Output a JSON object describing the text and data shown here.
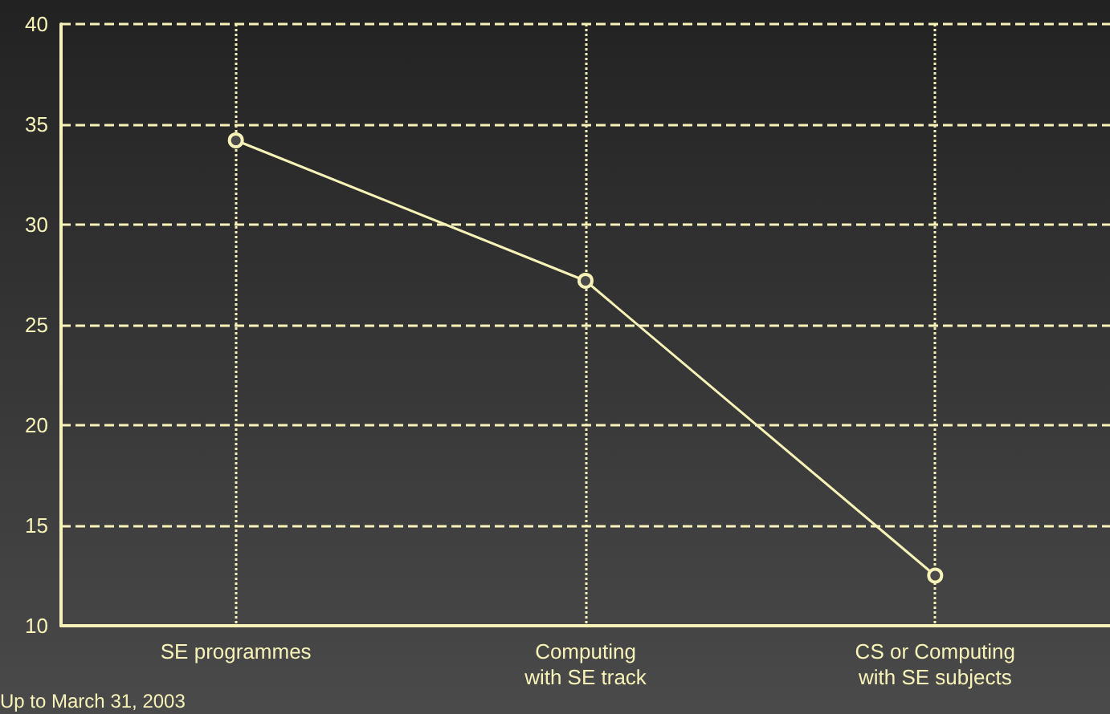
{
  "chart_data": {
    "type": "line",
    "categories": [
      "SE programmes",
      "Computing\nwith SE track",
      "CS or Computing\nwith SE subjects"
    ],
    "series": [
      {
        "color": "#f7f2b8",
        "values": [
          34.2,
          27.2,
          12.5
        ]
      }
    ],
    "ylim": [
      10,
      40
    ],
    "yticks": [
      10,
      15,
      20,
      25,
      30,
      35,
      40
    ],
    "grid": true,
    "marker": "circle",
    "line_style": "solid",
    "annotations": [
      "Up to March 31, 2003"
    ]
  }
}
